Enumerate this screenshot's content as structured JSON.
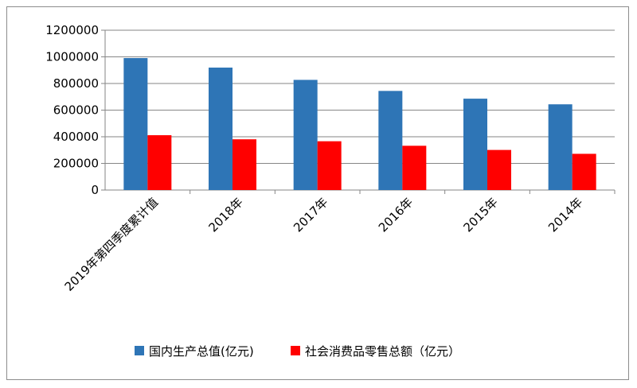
{
  "chart_data": {
    "type": "bar",
    "title": "",
    "xlabel": "",
    "ylabel": "",
    "categories": [
      "2019年第四季度累计值",
      "2018年",
      "2017年",
      "2016年",
      "2015年",
      "2014年"
    ],
    "series": [
      {
        "name": "国内生产总值(亿元)",
        "color": "#2e75b6",
        "values": [
          990865,
          919281,
          827122,
          744127,
          685993,
          643563
        ]
      },
      {
        "name": "社会消费品零售总额（亿元）",
        "color": "#ff0000",
        "values": [
          411649,
          380987,
          366262,
          332316,
          300931,
          271896
        ]
      }
    ],
    "ylim": [
      0,
      1200000
    ],
    "yticks": [
      0,
      200000,
      400000,
      600000,
      800000,
      1000000,
      1200000
    ],
    "grid": true,
    "legend": "bottom"
  }
}
